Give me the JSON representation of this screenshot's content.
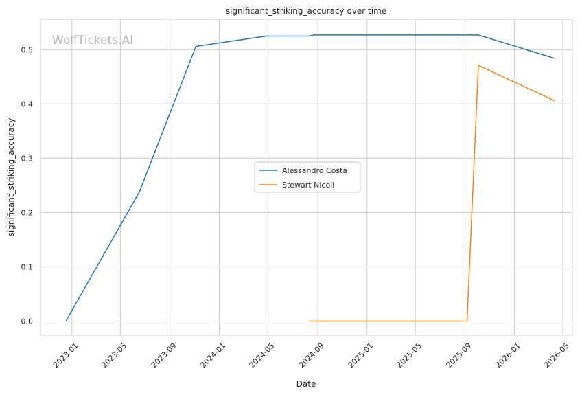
{
  "chart_data": {
    "type": "line",
    "title": "significant_striking_accuracy over time",
    "xlabel": "Date",
    "ylabel": "significant_striking_accuracy",
    "watermark": "WolfTickets.AI",
    "x_ticks": [
      "2023-01",
      "2023-05",
      "2023-09",
      "2024-01",
      "2024-05",
      "2024-09",
      "2025-01",
      "2025-05",
      "2025-09",
      "2026-01",
      "2026-05"
    ],
    "y_ticks": [
      0.0,
      0.1,
      0.2,
      0.3,
      0.4,
      0.5
    ],
    "y_tick_labels": [
      "0.0",
      "0.1",
      "0.2",
      "0.3",
      "0.4",
      "0.5"
    ],
    "xlim": [
      "2022-10-15",
      "2026-05-25"
    ],
    "ylim": [
      -0.026,
      0.556
    ],
    "grid": true,
    "legend_position": "center",
    "series": [
      {
        "name": "Alessandro Costa",
        "color": "#1f77b4",
        "points": [
          {
            "x": "2022-12-17",
            "y": 0.0
          },
          {
            "x": "2023-06-17",
            "y": 0.238
          },
          {
            "x": "2023-11-04",
            "y": 0.506
          },
          {
            "x": "2024-04-27",
            "y": 0.525
          },
          {
            "x": "2024-08-10",
            "y": 0.525
          },
          {
            "x": "2024-08-24",
            "y": 0.527
          },
          {
            "x": "2025-10-04",
            "y": 0.527
          },
          {
            "x": "2026-04-11",
            "y": 0.484
          }
        ]
      },
      {
        "name": "Stewart Nicoll",
        "color": "#ff7f0e",
        "points": [
          {
            "x": "2024-08-10",
            "y": 0.0
          },
          {
            "x": "2025-09-06",
            "y": 0.0
          },
          {
            "x": "2025-10-04",
            "y": 0.471
          },
          {
            "x": "2026-04-11",
            "y": 0.406
          }
        ]
      }
    ]
  }
}
